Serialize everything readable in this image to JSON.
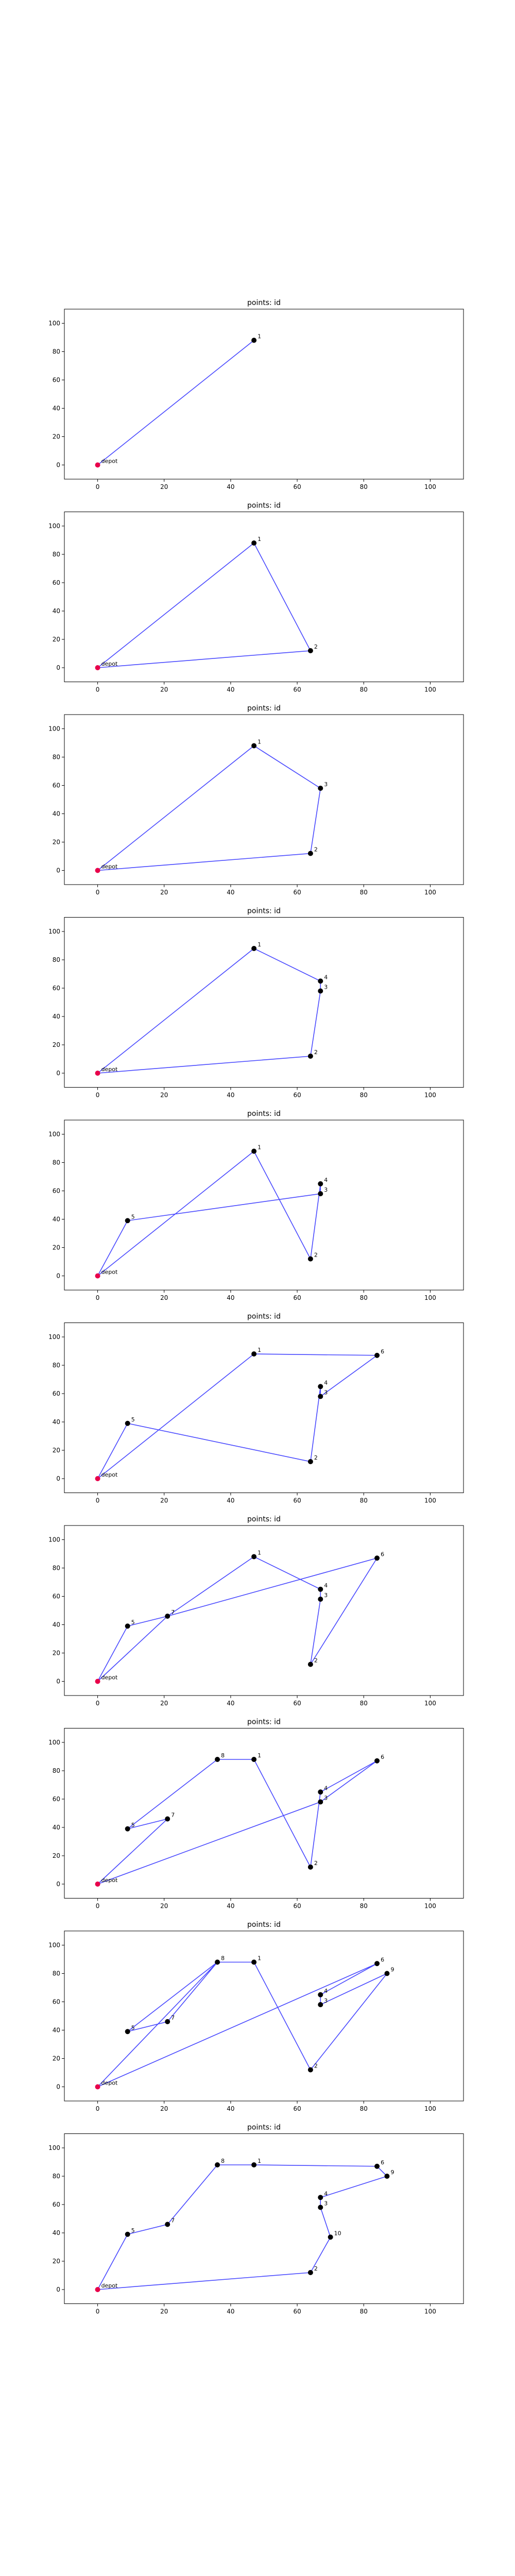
{
  "chart_data": {
    "type": "line",
    "style": {
      "route_color": "#4a4aff",
      "point_color": "#000000",
      "depot_color": "#e8004a"
    },
    "axes_template": {
      "title": "points: id",
      "xlim": [
        -10,
        110
      ],
      "ylim": [
        -10,
        110
      ],
      "xticks": [
        0,
        20,
        40,
        60,
        80,
        100
      ],
      "yticks": [
        0,
        20,
        40,
        60,
        80,
        100
      ],
      "grid": false
    },
    "points": [
      {
        "id": "depot",
        "x": 0,
        "y": 0
      },
      {
        "id": "1",
        "x": 47,
        "y": 88
      },
      {
        "id": "2",
        "x": 64,
        "y": 12
      },
      {
        "id": "3",
        "x": 67,
        "y": 58
      },
      {
        "id": "4",
        "x": 67,
        "y": 65
      },
      {
        "id": "5",
        "x": 9,
        "y": 39
      },
      {
        "id": "6",
        "x": 84,
        "y": 87
      },
      {
        "id": "7",
        "x": 21,
        "y": 46
      },
      {
        "id": "8",
        "x": 36,
        "y": 88
      },
      {
        "id": "9",
        "x": 87,
        "y": 80
      },
      {
        "id": "10",
        "x": 70,
        "y": 37
      }
    ],
    "panels": [
      {
        "title": "points: id",
        "route": [
          "depot",
          "1",
          "depot"
        ]
      },
      {
        "title": "points: id",
        "route": [
          "depot",
          "1",
          "2",
          "depot"
        ]
      },
      {
        "title": "points: id",
        "route": [
          "depot",
          "1",
          "3",
          "2",
          "depot"
        ]
      },
      {
        "title": "points: id",
        "route": [
          "depot",
          "1",
          "4",
          "3",
          "2",
          "depot"
        ]
      },
      {
        "title": "points: id",
        "route": [
          "depot",
          "5",
          "3",
          "4",
          "2",
          "1",
          "depot"
        ]
      },
      {
        "title": "points: id",
        "route": [
          "depot",
          "1",
          "6",
          "3",
          "4",
          "2",
          "5",
          "depot"
        ]
      },
      {
        "title": "points: id",
        "route": [
          "depot",
          "5",
          "7",
          "6",
          "2",
          "3",
          "4",
          "1",
          "7",
          "depot"
        ]
      },
      {
        "title": "points: id",
        "route": [
          "depot",
          "3",
          "6",
          "4",
          "2",
          "1",
          "8",
          "5",
          "7",
          "depot"
        ]
      },
      {
        "title": "points: id",
        "route": [
          "depot",
          "8",
          "7",
          "5",
          "8",
          "1",
          "2",
          "9",
          "3",
          "4",
          "6",
          "depot"
        ]
      },
      {
        "title": "points: id",
        "route": [
          "depot",
          "5",
          "7",
          "8",
          "1",
          "6",
          "9",
          "4",
          "3",
          "10",
          "2",
          "depot"
        ]
      }
    ]
  }
}
